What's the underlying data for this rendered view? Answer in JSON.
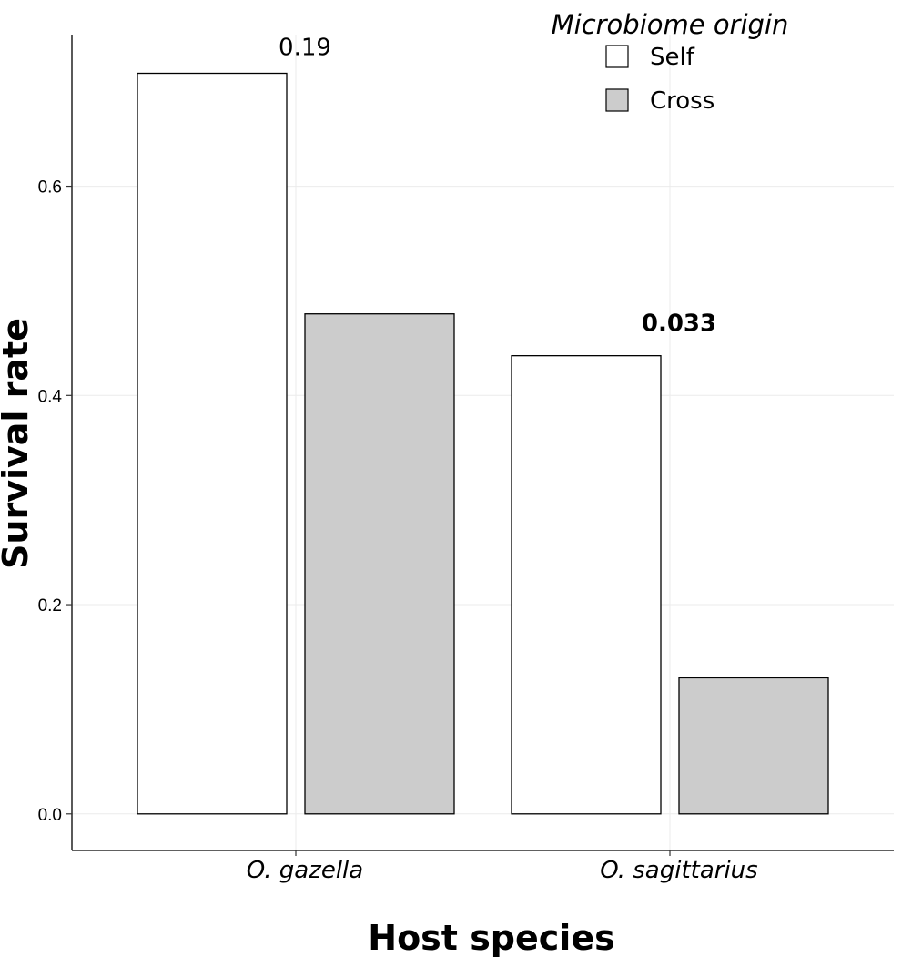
{
  "chart_data": {
    "type": "bar",
    "xlabel": "Host species",
    "ylabel": "Survival rate",
    "categories": [
      "O. gazella",
      "O. sagittarius"
    ],
    "series": [
      {
        "name": "Self",
        "color": "#ffffff",
        "values": [
          0.708,
          0.438
        ]
      },
      {
        "name": "Cross",
        "color": "#cccccc",
        "values": [
          0.478,
          0.13
        ]
      }
    ],
    "ylim": [
      -0.035,
      0.745
    ],
    "yticks": [
      0.0,
      0.2,
      0.4,
      0.6
    ],
    "ytick_labels": [
      "0.0",
      "0.2",
      "0.4",
      "0.6"
    ],
    "grid": true,
    "legend": {
      "title": "Microbiome origin",
      "position": "top-right"
    },
    "annotations": [
      {
        "category": "O. gazella",
        "text": "0.19",
        "bold": false
      },
      {
        "category": "O. sagittarius",
        "text": "0.033",
        "bold": true
      }
    ]
  }
}
